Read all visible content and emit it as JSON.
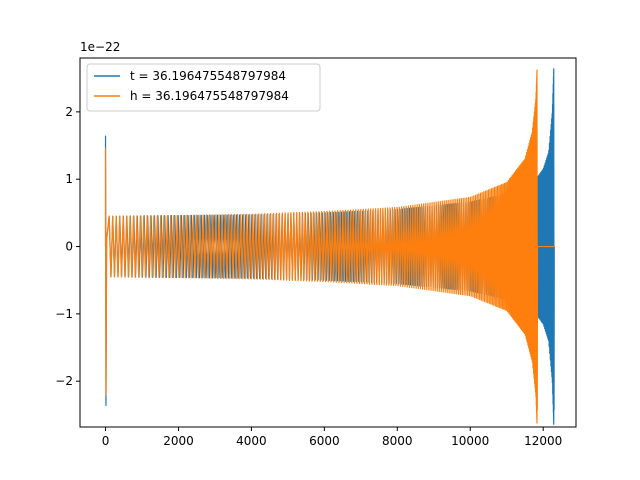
{
  "chart_data": {
    "type": "line",
    "title": "",
    "xlabel": "",
    "ylabel": "",
    "offset_text": "1e−22",
    "xlim": [
      -700,
      12900
    ],
    "ylim": [
      -2.68,
      2.8
    ],
    "xticks": [
      0,
      2000,
      4000,
      6000,
      8000,
      10000,
      12000
    ],
    "xtick_labels": [
      "0",
      "2000",
      "4000",
      "6000",
      "8000",
      "10000",
      "12000"
    ],
    "yticks": [
      -2,
      -1,
      0,
      1,
      2
    ],
    "ytick_labels": [
      "−2",
      "−1",
      "0",
      "1",
      "2"
    ],
    "grid": false,
    "legend_position": "upper-left",
    "series": [
      {
        "name": "t = 36.196475548797984",
        "color": "#1f77b4",
        "x_range": [
          0,
          12300
        ],
        "start_spike": {
          "x": 0,
          "max": 1.64,
          "min": -2.36
        },
        "envelope": [
          [
            100,
            0.45
          ],
          [
            2000,
            0.46
          ],
          [
            4000,
            0.47
          ],
          [
            6000,
            0.5
          ],
          [
            8000,
            0.55
          ],
          [
            10000,
            0.66
          ],
          [
            11000,
            0.78
          ],
          [
            11800,
            1.0
          ],
          [
            12000,
            1.15
          ],
          [
            12150,
            1.4
          ],
          [
            12250,
            2.0
          ],
          [
            12290,
            2.64
          ]
        ],
        "cycles": 200,
        "end_min": -2.43
      },
      {
        "name": "h = 36.196475548797984",
        "color": "#ff7f0e",
        "x_range": [
          0,
          12300
        ],
        "start_spike": {
          "x": 0,
          "max": 1.45,
          "min": -2.2
        },
        "envelope": [
          [
            100,
            0.45
          ],
          [
            2000,
            0.46
          ],
          [
            4000,
            0.48
          ],
          [
            6000,
            0.52
          ],
          [
            8000,
            0.58
          ],
          [
            10000,
            0.73
          ],
          [
            11000,
            0.95
          ],
          [
            11500,
            1.3
          ],
          [
            11700,
            1.7
          ],
          [
            11800,
            2.2
          ],
          [
            11830,
            2.62
          ]
        ],
        "cycles": 195,
        "chirp_end_x": 11830,
        "end_min": -2.42,
        "flat_after": [
          11840,
          12300
        ]
      }
    ]
  }
}
